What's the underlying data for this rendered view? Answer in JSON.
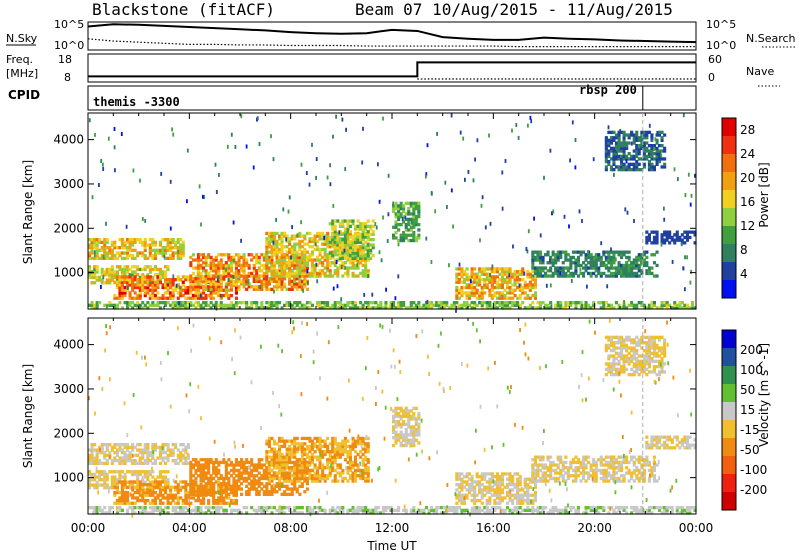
{
  "chart_data": [
    {
      "type": "line",
      "title": "Blackstone (fitACF)",
      "subtitle": "Beam 07  10/Aug/2015 - 11/Aug/2015",
      "panel": "sky-noise",
      "left_label": "N.Sky",
      "right_label": "N.Search",
      "left_ticks": [
        "10^5",
        "10^0"
      ],
      "right_ticks": [
        "10^5",
        "10^0"
      ],
      "x_hours": [
        0,
        1,
        2,
        3,
        4,
        5,
        6,
        7,
        8,
        9,
        10,
        11,
        12,
        13,
        14,
        15,
        16,
        17,
        18,
        19,
        20,
        21,
        22,
        23,
        24
      ],
      "sky_log10": [
        4.2,
        4.6,
        4.5,
        4.3,
        4.1,
        3.9,
        3.7,
        3.5,
        3.2,
        3.0,
        2.9,
        3.0,
        3.6,
        3.4,
        2.3,
        2.0,
        1.8,
        1.8,
        2.2,
        2.0,
        1.9,
        1.7,
        1.6,
        1.5,
        1.4
      ],
      "search_log10": [
        2.0,
        1.6,
        1.4,
        1.2,
        1.0,
        1.0,
        0.9,
        0.9,
        0.8,
        0.8,
        0.8,
        0.7,
        0.7,
        0.7,
        0.7,
        0.7,
        0.7,
        0.6,
        0.6,
        0.6,
        0.6,
        0.6,
        0.6,
        0.6,
        0.6
      ]
    },
    {
      "type": "line",
      "panel": "frequency",
      "left_label_1": "Freq.",
      "left_label_2": "[MHz]",
      "right_label": "Nave",
      "left_ticks": [
        "18",
        "8"
      ],
      "right_ticks": [
        "60",
        "0"
      ],
      "ylim": [
        8,
        18
      ],
      "x_hours": [
        0,
        13,
        13,
        24
      ],
      "freq_mhz": [
        10,
        10,
        15,
        15
      ]
    },
    {
      "type": "table",
      "panel": "cpid",
      "label": "CPID",
      "entries": [
        {
          "start_hour": 0,
          "text": "themis -3300"
        },
        {
          "start_hour": 21.9,
          "text": "rbsp 200"
        }
      ]
    },
    {
      "type": "heatmap",
      "panel": "power",
      "ylabel": "Slant Range [km]",
      "ylim": [
        180,
        4600
      ],
      "yticks": [
        1000,
        2000,
        3000,
        4000
      ],
      "colorbar_label": "Power [dB]",
      "colorbar_ticks": [
        4,
        8,
        12,
        16,
        20,
        24,
        28
      ],
      "colorbar_range": [
        0,
        30
      ],
      "colors": [
        "#0010f0",
        "#2040a0",
        "#308060",
        "#40a040",
        "#90d040",
        "#f0d020",
        "#f0a010",
        "#f07010",
        "#f03010",
        "#e00000"
      ],
      "echo_regions": [
        {
          "h0": 0.0,
          "h1": 3.8,
          "r0": 1300,
          "r1": 1750,
          "peak": 22
        },
        {
          "h0": 0.0,
          "h1": 3.2,
          "r0": 750,
          "r1": 1150,
          "peak": 20
        },
        {
          "h0": 1.0,
          "h1": 5.8,
          "r0": 400,
          "r1": 900,
          "peak": 28
        },
        {
          "h0": 4.0,
          "h1": 8.6,
          "r0": 600,
          "r1": 1400,
          "peak": 26
        },
        {
          "h0": 7.0,
          "h1": 11.0,
          "r0": 900,
          "r1": 1900,
          "peak": 22
        },
        {
          "h0": 9.5,
          "h1": 11.2,
          "r0": 1300,
          "r1": 2200,
          "peak": 18
        },
        {
          "h0": 12.0,
          "h1": 13.0,
          "r0": 1700,
          "r1": 2600,
          "peak": 14
        },
        {
          "h0": 14.5,
          "h1": 17.7,
          "r0": 400,
          "r1": 1100,
          "peak": 24
        },
        {
          "h0": 17.5,
          "h1": 22.5,
          "r0": 900,
          "r1": 1500,
          "peak": 10
        },
        {
          "h0": 20.4,
          "h1": 22.8,
          "r0": 3300,
          "r1": 4200,
          "peak": 8
        },
        {
          "h0": 22.0,
          "h1": 24.0,
          "r0": 1650,
          "r1": 1900,
          "peak": 6
        },
        {
          "h0": 0.0,
          "h1": 24.0,
          "r0": 180,
          "r1": 350,
          "peak": 16
        }
      ]
    },
    {
      "type": "heatmap",
      "panel": "velocity",
      "xlabel": "Time UT",
      "ylabel": "Slant Range [km]",
      "xticks": [
        "00:00",
        "04:00",
        "08:00",
        "12:00",
        "16:00",
        "20:00",
        "00:00"
      ],
      "ylim": [
        180,
        4600
      ],
      "yticks": [
        1000,
        2000,
        3000,
        4000
      ],
      "colorbar_label": "Velocity [m s^-1]",
      "colorbar_ticks": [
        "200",
        "100",
        "50",
        "15",
        "-15",
        "-50",
        "-100",
        "-200"
      ],
      "colorbar_range": [
        -250,
        250
      ],
      "colors": [
        "#0000d0",
        "#2050a0",
        "#2f9050",
        "#60c030",
        "#c8c8c8",
        "#f0c030",
        "#f08a10",
        "#f06010",
        "#f02010",
        "#d00000"
      ],
      "echo_regions": [
        {
          "h0": 0.0,
          "h1": 4.0,
          "r0": 1300,
          "r1": 1750,
          "vel": 0
        },
        {
          "h0": 0.0,
          "h1": 3.2,
          "r0": 750,
          "r1": 1150,
          "vel": -5
        },
        {
          "h0": 1.0,
          "h1": 5.8,
          "r0": 400,
          "r1": 900,
          "vel": -60
        },
        {
          "h0": 4.0,
          "h1": 8.6,
          "r0": 600,
          "r1": 1400,
          "vel": -70
        },
        {
          "h0": 7.0,
          "h1": 11.0,
          "r0": 900,
          "r1": 1900,
          "vel": -50
        },
        {
          "h0": 12.0,
          "h1": 13.0,
          "r0": 1700,
          "r1": 2600,
          "vel": 0
        },
        {
          "h0": 14.5,
          "h1": 17.7,
          "r0": 400,
          "r1": 1100,
          "vel": 0
        },
        {
          "h0": 17.5,
          "h1": 22.5,
          "r0": 900,
          "r1": 1500,
          "vel": 0
        },
        {
          "h0": 20.4,
          "h1": 22.8,
          "r0": 3300,
          "r1": 4200,
          "vel": 0
        },
        {
          "h0": 22.0,
          "h1": 24.0,
          "r0": 1650,
          "r1": 1900,
          "vel": 0
        },
        {
          "h0": 0.0,
          "h1": 24.0,
          "r0": 180,
          "r1": 350,
          "vel": 40
        }
      ]
    }
  ]
}
